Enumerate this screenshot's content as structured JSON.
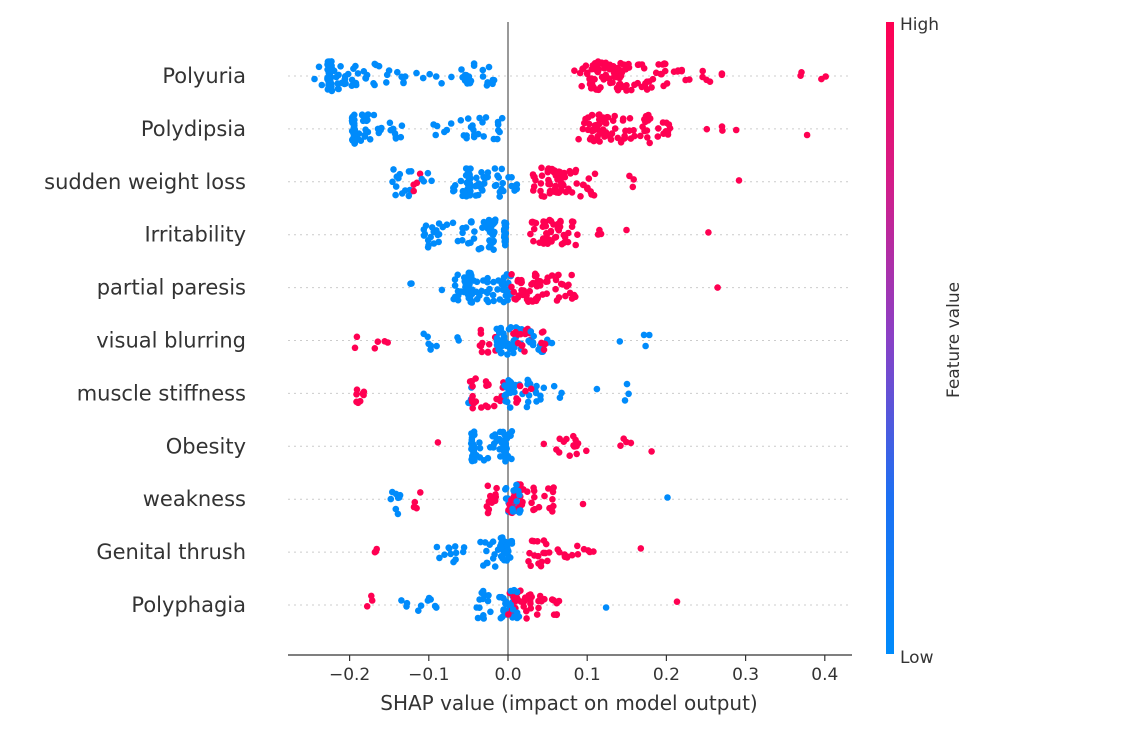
{
  "chart_data": {
    "type": "scatter",
    "subtype": "beeswarm",
    "xlabel": "SHAP value (impact on model output)",
    "xlim": [
      -0.28,
      0.43
    ],
    "x_ticks": [
      -0.2,
      -0.1,
      0.0,
      0.1,
      0.2,
      0.3,
      0.4
    ],
    "x_tick_labels": [
      "−0.2",
      "−0.1",
      "0.0",
      "0.1",
      "0.2",
      "0.3",
      "0.4"
    ],
    "colorbar": {
      "label": "Feature value",
      "high_label": "High",
      "low_label": "Low",
      "low_color": "#008bfb",
      "high_color": "#ff0052"
    },
    "zero_line": true,
    "features": [
      {
        "name": "Polyuria",
        "clusters": [
          {
            "v": "low",
            "x": [
              -0.245,
              -0.235
            ],
            "n": 3
          },
          {
            "v": "low",
            "x": [
              -0.228,
              -0.222
            ],
            "n": 40
          },
          {
            "v": "low",
            "x": [
              -0.22,
              -0.2
            ],
            "n": 14
          },
          {
            "v": "low",
            "x": [
              -0.2,
              -0.16
            ],
            "n": 16
          },
          {
            "v": "low",
            "x": [
              -0.155,
              -0.12
            ],
            "n": 8
          },
          {
            "v": "low",
            "x": [
              -0.12,
              -0.09
            ],
            "n": 4
          },
          {
            "v": "low",
            "x": [
              -0.085,
              -0.05
            ],
            "n": 8
          },
          {
            "v": "low",
            "x": [
              -0.05,
              -0.015
            ],
            "n": 14
          },
          {
            "v": "high",
            "x": [
              0.083,
              0.1
            ],
            "n": 6
          },
          {
            "v": "high",
            "x": [
              0.1,
              0.12
            ],
            "n": 26
          },
          {
            "v": "high",
            "x": [
              0.12,
              0.15
            ],
            "n": 38
          },
          {
            "v": "high",
            "x": [
              0.15,
              0.2
            ],
            "n": 26
          },
          {
            "v": "high",
            "x": [
              0.2,
              0.24
            ],
            "n": 8
          },
          {
            "v": "high",
            "x": [
              0.24,
              0.28
            ],
            "n": 6
          },
          {
            "v": "high",
            "x": [
              0.36,
              0.41
            ],
            "n": 4
          }
        ]
      },
      {
        "name": "Polydipsia",
        "clusters": [
          {
            "v": "low",
            "x": [
              -0.197,
              -0.193
            ],
            "n": 30
          },
          {
            "v": "low",
            "x": [
              -0.19,
              -0.16
            ],
            "n": 20
          },
          {
            "v": "low",
            "x": [
              -0.16,
              -0.13
            ],
            "n": 10
          },
          {
            "v": "low",
            "x": [
              -0.095,
              -0.06
            ],
            "n": 6
          },
          {
            "v": "low",
            "x": [
              -0.06,
              -0.005
            ],
            "n": 22
          },
          {
            "v": "high",
            "x": [
              0.088,
              0.105
            ],
            "n": 8
          },
          {
            "v": "high",
            "x": [
              0.105,
              0.13
            ],
            "n": 32
          },
          {
            "v": "high",
            "x": [
              0.13,
              0.18
            ],
            "n": 30
          },
          {
            "v": "high",
            "x": [
              0.18,
              0.22
            ],
            "n": 10
          },
          {
            "v": "high",
            "x": [
              0.22,
              0.29
            ],
            "n": 4
          },
          {
            "v": "high",
            "x": [
              0.375,
              0.38
            ],
            "n": 1
          }
        ]
      },
      {
        "name": "sudden weight loss",
        "clusters": [
          {
            "v": "low",
            "x": [
              -0.147,
              -0.12
            ],
            "n": 14
          },
          {
            "v": "high",
            "x": [
              -0.12,
              -0.11
            ],
            "n": 4
          },
          {
            "v": "low",
            "x": [
              -0.11,
              -0.095
            ],
            "n": 4
          },
          {
            "v": "low",
            "x": [
              -0.07,
              -0.053
            ],
            "n": 8
          },
          {
            "v": "low",
            "x": [
              -0.053,
              -0.047
            ],
            "n": 28
          },
          {
            "v": "low",
            "x": [
              -0.047,
              -0.02
            ],
            "n": 14
          },
          {
            "v": "low",
            "x": [
              -0.02,
              0.012
            ],
            "n": 18
          },
          {
            "v": "high",
            "x": [
              0.03,
              0.05
            ],
            "n": 12
          },
          {
            "v": "high",
            "x": [
              0.05,
              0.07
            ],
            "n": 34
          },
          {
            "v": "high",
            "x": [
              0.07,
              0.11
            ],
            "n": 22
          },
          {
            "v": "high",
            "x": [
              0.15,
              0.16
            ],
            "n": 3
          },
          {
            "v": "high",
            "x": [
              0.29,
              0.295
            ],
            "n": 1
          }
        ]
      },
      {
        "name": "Irritability",
        "clusters": [
          {
            "v": "low",
            "x": [
              -0.11,
              -0.06
            ],
            "n": 20
          },
          {
            "v": "low",
            "x": [
              -0.06,
              -0.025
            ],
            "n": 18
          },
          {
            "v": "low",
            "x": [
              -0.024,
              -0.016
            ],
            "n": 26
          },
          {
            "v": "low",
            "x": [
              -0.005,
              -0.002
            ],
            "n": 16
          },
          {
            "v": "high",
            "x": [
              0.028,
              0.06
            ],
            "n": 30
          },
          {
            "v": "high",
            "x": [
              0.06,
              0.09
            ],
            "n": 18
          },
          {
            "v": "high",
            "x": [
              0.1,
              0.12
            ],
            "n": 3
          },
          {
            "v": "high",
            "x": [
              0.145,
              0.15
            ],
            "n": 1
          },
          {
            "v": "high",
            "x": [
              0.25,
              0.255
            ],
            "n": 1
          }
        ]
      },
      {
        "name": "partial paresis",
        "clusters": [
          {
            "v": "low",
            "x": [
              -0.125,
              -0.115
            ],
            "n": 2
          },
          {
            "v": "low",
            "x": [
              -0.088,
              -0.083
            ],
            "n": 1
          },
          {
            "v": "low",
            "x": [
              -0.07,
              -0.05
            ],
            "n": 16
          },
          {
            "v": "low",
            "x": [
              -0.05,
              -0.045
            ],
            "n": 28
          },
          {
            "v": "low",
            "x": [
              -0.045,
              -0.01
            ],
            "n": 20
          },
          {
            "v": "low",
            "x": [
              -0.01,
              0.004
            ],
            "n": 18
          },
          {
            "v": "high",
            "x": [
              0.004,
              0.025
            ],
            "n": 18
          },
          {
            "v": "high",
            "x": [
              0.025,
              0.05
            ],
            "n": 22
          },
          {
            "v": "high",
            "x": [
              0.05,
              0.09
            ],
            "n": 18
          },
          {
            "v": "high",
            "x": [
              0.26,
              0.265
            ],
            "n": 1
          }
        ]
      },
      {
        "name": "visual blurring",
        "clusters": [
          {
            "v": "high",
            "x": [
              -0.195,
              -0.19
            ],
            "n": 2
          },
          {
            "v": "high",
            "x": [
              -0.17,
              -0.15
            ],
            "n": 4
          },
          {
            "v": "low",
            "x": [
              -0.11,
              -0.09
            ],
            "n": 6
          },
          {
            "v": "low",
            "x": [
              -0.07,
              -0.06
            ],
            "n": 2
          },
          {
            "v": "high",
            "x": [
              -0.04,
              -0.01
            ],
            "n": 12
          },
          {
            "v": "low",
            "x": [
              -0.015,
              -0.005
            ],
            "n": 16
          },
          {
            "v": "low",
            "x": [
              -0.005,
              0.02
            ],
            "n": 26
          },
          {
            "v": "high",
            "x": [
              0.0,
              0.03
            ],
            "n": 14
          },
          {
            "v": "low",
            "x": [
              0.02,
              0.06
            ],
            "n": 14
          },
          {
            "v": "high",
            "x": [
              0.04,
              0.06
            ],
            "n": 6
          },
          {
            "v": "low",
            "x": [
              0.14,
              0.145
            ],
            "n": 1
          },
          {
            "v": "low",
            "x": [
              0.17,
              0.185
            ],
            "n": 3
          }
        ]
      },
      {
        "name": "muscle stiffness",
        "clusters": [
          {
            "v": "high",
            "x": [
              -0.2,
              -0.18
            ],
            "n": 8
          },
          {
            "v": "low",
            "x": [
              -0.055,
              -0.045
            ],
            "n": 4
          },
          {
            "v": "high",
            "x": [
              -0.05,
              -0.01
            ],
            "n": 20
          },
          {
            "v": "high",
            "x": [
              -0.01,
              0.0
            ],
            "n": 8
          },
          {
            "v": "low",
            "x": [
              -0.005,
              0.01
            ],
            "n": 20
          },
          {
            "v": "low",
            "x": [
              0.01,
              0.04
            ],
            "n": 14
          },
          {
            "v": "high",
            "x": [
              0.01,
              0.03
            ],
            "n": 6
          },
          {
            "v": "low",
            "x": [
              0.04,
              0.07
            ],
            "n": 6
          },
          {
            "v": "low",
            "x": [
              0.11,
              0.115
            ],
            "n": 1
          },
          {
            "v": "low",
            "x": [
              0.145,
              0.155
            ],
            "n": 3
          }
        ]
      },
      {
        "name": "Obesity",
        "clusters": [
          {
            "v": "high",
            "x": [
              -0.09,
              -0.087
            ],
            "n": 1
          },
          {
            "v": "low",
            "x": [
              -0.047,
              -0.042
            ],
            "n": 20
          },
          {
            "v": "low",
            "x": [
              -0.04,
              -0.01
            ],
            "n": 16
          },
          {
            "v": "low",
            "x": [
              -0.01,
              0.005
            ],
            "n": 24
          },
          {
            "v": "high",
            "x": [
              0.045,
              0.05
            ],
            "n": 1
          },
          {
            "v": "high",
            "x": [
              0.06,
              0.1
            ],
            "n": 14
          },
          {
            "v": "high",
            "x": [
              0.14,
              0.16
            ],
            "n": 4
          },
          {
            "v": "high",
            "x": [
              0.18,
              0.185
            ],
            "n": 1
          }
        ]
      },
      {
        "name": "weakness",
        "clusters": [
          {
            "v": "low",
            "x": [
              -0.15,
              -0.135
            ],
            "n": 8
          },
          {
            "v": "high",
            "x": [
              -0.125,
              -0.11
            ],
            "n": 4
          },
          {
            "v": "high",
            "x": [
              -0.03,
              -0.01
            ],
            "n": 12
          },
          {
            "v": "low",
            "x": [
              -0.005,
              0.01
            ],
            "n": 18
          },
          {
            "v": "high",
            "x": [
              0.0,
              0.02
            ],
            "n": 22
          },
          {
            "v": "low",
            "x": [
              0.005,
              0.02
            ],
            "n": 10
          },
          {
            "v": "high",
            "x": [
              0.02,
              0.06
            ],
            "n": 16
          },
          {
            "v": "high",
            "x": [
              0.09,
              0.095
            ],
            "n": 1
          },
          {
            "v": "low",
            "x": [
              0.2,
              0.205
            ],
            "n": 1
          }
        ]
      },
      {
        "name": "Genital thrush",
        "clusters": [
          {
            "v": "high",
            "x": [
              -0.17,
              -0.165
            ],
            "n": 3
          },
          {
            "v": "low",
            "x": [
              -0.092,
              -0.055
            ],
            "n": 12
          },
          {
            "v": "low",
            "x": [
              -0.035,
              -0.01
            ],
            "n": 12
          },
          {
            "v": "low",
            "x": [
              -0.01,
              0.005
            ],
            "n": 30
          },
          {
            "v": "high",
            "x": [
              0.025,
              0.05
            ],
            "n": 16
          },
          {
            "v": "high",
            "x": [
              0.05,
              0.115
            ],
            "n": 14
          },
          {
            "v": "high",
            "x": [
              0.165,
              0.17
            ],
            "n": 1
          }
        ]
      },
      {
        "name": "Polyphagia",
        "clusters": [
          {
            "v": "high",
            "x": [
              -0.178,
              -0.17
            ],
            "n": 3
          },
          {
            "v": "low",
            "x": [
              -0.135,
              -0.09
            ],
            "n": 10
          },
          {
            "v": "low",
            "x": [
              -0.04,
              -0.01
            ],
            "n": 14
          },
          {
            "v": "low",
            "x": [
              -0.01,
              0.01
            ],
            "n": 20
          },
          {
            "v": "high",
            "x": [
              0.0,
              0.03
            ],
            "n": 26
          },
          {
            "v": "low",
            "x": [
              0.0,
              0.015
            ],
            "n": 10
          },
          {
            "v": "high",
            "x": [
              0.03,
              0.075
            ],
            "n": 14
          },
          {
            "v": "low",
            "x": [
              0.12,
              0.125
            ],
            "n": 1
          },
          {
            "v": "high",
            "x": [
              0.21,
              0.215
            ],
            "n": 1
          }
        ]
      }
    ]
  }
}
